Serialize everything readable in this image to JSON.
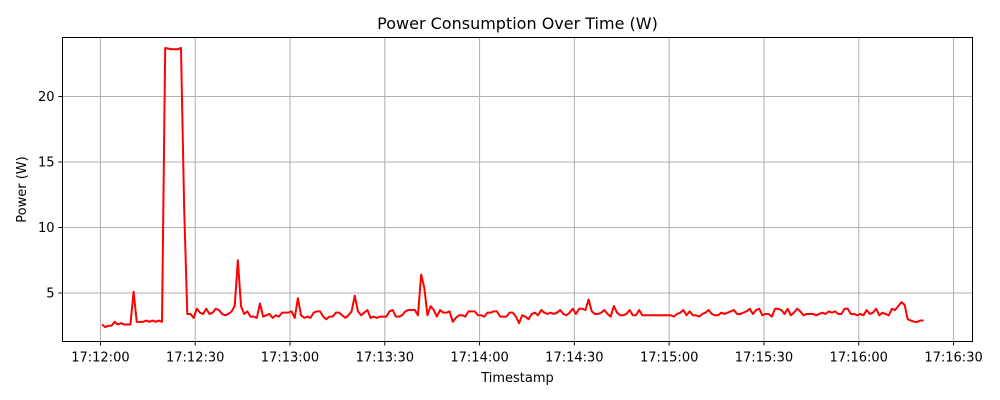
{
  "chart_data": {
    "type": "line",
    "title": "Power Consumption Over Time (W)",
    "xlabel": "Timestamp",
    "ylabel": "Power (W)",
    "grid": true,
    "x_range_seconds_label": [
      "17:11:48",
      "17:16:36"
    ],
    "ylim": [
      1.3,
      24.5
    ],
    "x_ticks": [
      "17:12:00",
      "17:12:30",
      "17:13:00",
      "17:13:30",
      "17:14:00",
      "17:14:30",
      "17:15:00",
      "17:15:30",
      "17:16:00",
      "17:16:30"
    ],
    "y_ticks": [
      5,
      10,
      15,
      20
    ],
    "series": [
      {
        "color": "#ff0000",
        "points": [
          [
            "17:12:00.5",
            2.6
          ],
          [
            "17:12:01.5",
            2.4
          ],
          [
            "17:12:02.5",
            2.5
          ],
          [
            "17:12:03.5",
            2.5
          ],
          [
            "17:12:04.5",
            2.8
          ],
          [
            "17:12:05.5",
            2.6
          ],
          [
            "17:12:06.5",
            2.7
          ],
          [
            "17:12:07.5",
            2.6
          ],
          [
            "17:12:08.5",
            2.6
          ],
          [
            "17:12:09.5",
            2.6
          ],
          [
            "17:12:10.5",
            5.1
          ],
          [
            "17:12:11.5",
            2.8
          ],
          [
            "17:12:12.5",
            2.8
          ],
          [
            "17:12:13.5",
            2.8
          ],
          [
            "17:12:14.5",
            2.9
          ],
          [
            "17:12:15.5",
            2.8
          ],
          [
            "17:12:16.5",
            2.9
          ],
          [
            "17:12:17.5",
            2.8
          ],
          [
            "17:12:18.5",
            2.9
          ],
          [
            "17:12:19.5",
            2.8
          ],
          [
            "17:12:20.5",
            23.7
          ],
          [
            "17:12:22.5",
            23.6
          ],
          [
            "17:12:24.5",
            23.6
          ],
          [
            "17:12:25.5",
            23.7
          ],
          [
            "17:12:26.5",
            11.5
          ],
          [
            "17:12:27.5",
            3.4
          ],
          [
            "17:12:28.5",
            3.4
          ],
          [
            "17:12:29.5",
            3.1
          ],
          [
            "17:12:30.5",
            3.8
          ],
          [
            "17:12:31.5",
            3.5
          ],
          [
            "17:12:32.5",
            3.4
          ],
          [
            "17:12:33.5",
            3.8
          ],
          [
            "17:12:34.5",
            3.4
          ],
          [
            "17:12:35.5",
            3.5
          ],
          [
            "17:12:36.5",
            3.8
          ],
          [
            "17:12:37.5",
            3.7
          ],
          [
            "17:12:38.5",
            3.4
          ],
          [
            "17:12:39.5",
            3.3
          ],
          [
            "17:12:40.5",
            3.4
          ],
          [
            "17:12:41.5",
            3.6
          ],
          [
            "17:12:42.5",
            4.0
          ],
          [
            "17:12:43.5",
            7.5
          ],
          [
            "17:12:44.5",
            4.0
          ],
          [
            "17:12:45.5",
            3.4
          ],
          [
            "17:12:46.5",
            3.6
          ],
          [
            "17:12:47.5",
            3.2
          ],
          [
            "17:12:48.5",
            3.2
          ],
          [
            "17:12:49.5",
            3.1
          ],
          [
            "17:12:50.5",
            4.2
          ],
          [
            "17:12:51.5",
            3.2
          ],
          [
            "17:12:52.5",
            3.3
          ],
          [
            "17:12:53.5",
            3.4
          ],
          [
            "17:12:54.5",
            3.1
          ],
          [
            "17:12:55.5",
            3.3
          ],
          [
            "17:12:56.5",
            3.2
          ],
          [
            "17:12:57.5",
            3.5
          ],
          [
            "17:12:58.5",
            3.5
          ],
          [
            "17:12:59.5",
            3.5
          ],
          [
            "17:13:00.5",
            3.6
          ],
          [
            "17:13:01.5",
            3.1
          ],
          [
            "17:13:02.5",
            4.6
          ],
          [
            "17:13:03.5",
            3.3
          ],
          [
            "17:13:04.5",
            3.1
          ],
          [
            "17:13:05.5",
            3.2
          ],
          [
            "17:13:06.5",
            3.1
          ],
          [
            "17:13:07.5",
            3.5
          ],
          [
            "17:13:08.5",
            3.6
          ],
          [
            "17:13:09.5",
            3.6
          ],
          [
            "17:13:10.5",
            3.2
          ],
          [
            "17:13:11.5",
            3.0
          ],
          [
            "17:13:12.5",
            3.2
          ],
          [
            "17:13:13.5",
            3.2
          ],
          [
            "17:13:14.5",
            3.5
          ],
          [
            "17:13:15.5",
            3.5
          ],
          [
            "17:13:16.5",
            3.3
          ],
          [
            "17:13:17.5",
            3.1
          ],
          [
            "17:13:18.5",
            3.3
          ],
          [
            "17:13:19.5",
            3.6
          ],
          [
            "17:13:20.5",
            4.8
          ],
          [
            "17:13:21.5",
            3.6
          ],
          [
            "17:13:22.5",
            3.3
          ],
          [
            "17:13:23.5",
            3.5
          ],
          [
            "17:13:24.5",
            3.7
          ],
          [
            "17:13:25.5",
            3.1
          ],
          [
            "17:13:26.5",
            3.2
          ],
          [
            "17:13:27.5",
            3.1
          ],
          [
            "17:13:28.5",
            3.2
          ],
          [
            "17:13:29.5",
            3.2
          ],
          [
            "17:13:30.5",
            3.2
          ],
          [
            "17:13:31.5",
            3.6
          ],
          [
            "17:13:32.5",
            3.7
          ],
          [
            "17:13:33.5",
            3.2
          ],
          [
            "17:13:34.5",
            3.2
          ],
          [
            "17:13:35.5",
            3.3
          ],
          [
            "17:13:36.5",
            3.6
          ],
          [
            "17:13:37.5",
            3.7
          ],
          [
            "17:13:38.5",
            3.7
          ],
          [
            "17:13:39.5",
            3.7
          ],
          [
            "17:13:40.5",
            3.3
          ],
          [
            "17:13:41.5",
            6.4
          ],
          [
            "17:13:42.5",
            5.4
          ],
          [
            "17:13:43.5",
            3.3
          ],
          [
            "17:13:44.5",
            4.0
          ],
          [
            "17:13:45.5",
            3.7
          ],
          [
            "17:13:46.5",
            3.2
          ],
          [
            "17:13:47.5",
            3.7
          ],
          [
            "17:13:48.5",
            3.5
          ],
          [
            "17:13:49.5",
            3.5
          ],
          [
            "17:13:50.5",
            3.6
          ],
          [
            "17:13:51.5",
            2.8
          ],
          [
            "17:13:52.5",
            3.1
          ],
          [
            "17:13:53.5",
            3.3
          ],
          [
            "17:13:54.5",
            3.3
          ],
          [
            "17:13:55.5",
            3.2
          ],
          [
            "17:13:56.5",
            3.6
          ],
          [
            "17:13:57.5",
            3.6
          ],
          [
            "17:13:58.5",
            3.6
          ],
          [
            "17:13:59.5",
            3.3
          ],
          [
            "17:14:00.5",
            3.3
          ],
          [
            "17:14:01.5",
            3.2
          ],
          [
            "17:14:02.5",
            3.5
          ],
          [
            "17:14:03.5",
            3.5
          ],
          [
            "17:14:04.5",
            3.6
          ],
          [
            "17:14:05.5",
            3.6
          ],
          [
            "17:14:06.5",
            3.2
          ],
          [
            "17:14:07.5",
            3.2
          ],
          [
            "17:14:08.5",
            3.2
          ],
          [
            "17:14:09.5",
            3.5
          ],
          [
            "17:14:10.5",
            3.5
          ],
          [
            "17:14:11.5",
            3.2
          ],
          [
            "17:14:12.5",
            2.7
          ],
          [
            "17:14:13.5",
            3.3
          ],
          [
            "17:14:14.5",
            3.2
          ],
          [
            "17:14:15.5",
            3.0
          ],
          [
            "17:14:16.5",
            3.4
          ],
          [
            "17:14:17.5",
            3.5
          ],
          [
            "17:14:18.5",
            3.3
          ],
          [
            "17:14:19.5",
            3.7
          ],
          [
            "17:14:20.5",
            3.5
          ],
          [
            "17:14:21.5",
            3.4
          ],
          [
            "17:14:22.5",
            3.5
          ],
          [
            "17:14:23.5",
            3.4
          ],
          [
            "17:14:24.5",
            3.5
          ],
          [
            "17:14:25.5",
            3.7
          ],
          [
            "17:14:26.5",
            3.4
          ],
          [
            "17:14:27.5",
            3.3
          ],
          [
            "17:14:28.5",
            3.5
          ],
          [
            "17:14:29.5",
            3.8
          ],
          [
            "17:14:30.5",
            3.4
          ],
          [
            "17:14:31.5",
            3.8
          ],
          [
            "17:14:32.5",
            3.8
          ],
          [
            "17:14:33.5",
            3.7
          ],
          [
            "17:14:34.5",
            4.5
          ],
          [
            "17:14:35.5",
            3.6
          ],
          [
            "17:14:36.5",
            3.4
          ],
          [
            "17:14:37.5",
            3.4
          ],
          [
            "17:14:38.5",
            3.5
          ],
          [
            "17:14:39.5",
            3.7
          ],
          [
            "17:14:40.5",
            3.4
          ],
          [
            "17:14:41.5",
            3.2
          ],
          [
            "17:14:42.5",
            4.0
          ],
          [
            "17:14:43.5",
            3.5
          ],
          [
            "17:14:44.5",
            3.3
          ],
          [
            "17:14:45.5",
            3.3
          ],
          [
            "17:14:46.5",
            3.4
          ],
          [
            "17:14:47.5",
            3.7
          ],
          [
            "17:14:48.5",
            3.3
          ],
          [
            "17:14:49.5",
            3.3
          ],
          [
            "17:14:50.5",
            3.7
          ],
          [
            "17:14:51.5",
            3.3
          ],
          [
            "17:14:52.5",
            3.3
          ],
          [
            "17:14:53.5",
            3.3
          ],
          [
            "17:14:54.5",
            3.3
          ],
          [
            "17:14:55.5",
            3.3
          ],
          [
            "17:14:56.5",
            3.3
          ],
          [
            "17:14:57.5",
            3.3
          ],
          [
            "17:14:58.5",
            3.3
          ],
          [
            "17:14:59.5",
            3.3
          ],
          [
            "17:15:00.5",
            3.3
          ],
          [
            "17:15:01.5",
            3.2
          ],
          [
            "17:15:02.5",
            3.4
          ],
          [
            "17:15:03.5",
            3.5
          ],
          [
            "17:15:04.5",
            3.7
          ],
          [
            "17:15:05.5",
            3.3
          ],
          [
            "17:15:06.5",
            3.6
          ],
          [
            "17:15:07.5",
            3.3
          ],
          [
            "17:15:08.5",
            3.3
          ],
          [
            "17:15:09.5",
            3.2
          ],
          [
            "17:15:10.5",
            3.4
          ],
          [
            "17:15:11.5",
            3.5
          ],
          [
            "17:15:12.5",
            3.7
          ],
          [
            "17:15:13.5",
            3.4
          ],
          [
            "17:15:14.5",
            3.3
          ],
          [
            "17:15:15.5",
            3.3
          ],
          [
            "17:15:16.5",
            3.5
          ],
          [
            "17:15:17.5",
            3.4
          ],
          [
            "17:15:18.5",
            3.5
          ],
          [
            "17:15:19.5",
            3.6
          ],
          [
            "17:15:20.5",
            3.7
          ],
          [
            "17:15:21.5",
            3.4
          ],
          [
            "17:15:22.5",
            3.4
          ],
          [
            "17:15:23.5",
            3.5
          ],
          [
            "17:15:24.5",
            3.6
          ],
          [
            "17:15:25.5",
            3.8
          ],
          [
            "17:15:26.5",
            3.4
          ],
          [
            "17:15:27.5",
            3.7
          ],
          [
            "17:15:28.5",
            3.8
          ],
          [
            "17:15:29.5",
            3.3
          ],
          [
            "17:15:30.5",
            3.4
          ],
          [
            "17:15:31.5",
            3.4
          ],
          [
            "17:15:32.5",
            3.2
          ],
          [
            "17:15:33.5",
            3.8
          ],
          [
            "17:15:34.5",
            3.8
          ],
          [
            "17:15:35.5",
            3.7
          ],
          [
            "17:15:36.5",
            3.4
          ],
          [
            "17:15:37.5",
            3.8
          ],
          [
            "17:15:38.5",
            3.3
          ],
          [
            "17:15:39.5",
            3.5
          ],
          [
            "17:15:40.5",
            3.8
          ],
          [
            "17:15:41.5",
            3.6
          ],
          [
            "17:15:42.5",
            3.3
          ],
          [
            "17:15:43.5",
            3.4
          ],
          [
            "17:15:44.5",
            3.4
          ],
          [
            "17:15:45.5",
            3.4
          ],
          [
            "17:15:46.5",
            3.3
          ],
          [
            "17:15:47.5",
            3.4
          ],
          [
            "17:15:48.5",
            3.5
          ],
          [
            "17:15:49.5",
            3.4
          ],
          [
            "17:15:50.5",
            3.6
          ],
          [
            "17:15:51.5",
            3.5
          ],
          [
            "17:15:52.5",
            3.6
          ],
          [
            "17:15:53.5",
            3.4
          ],
          [
            "17:15:54.5",
            3.4
          ],
          [
            "17:15:55.5",
            3.8
          ],
          [
            "17:15:56.5",
            3.8
          ],
          [
            "17:15:57.5",
            3.4
          ],
          [
            "17:15:58.5",
            3.4
          ],
          [
            "17:15:59.5",
            3.3
          ],
          [
            "17:16:00.5",
            3.4
          ],
          [
            "17:16:01.5",
            3.3
          ],
          [
            "17:16:02.5",
            3.7
          ],
          [
            "17:16:03.5",
            3.4
          ],
          [
            "17:16:04.5",
            3.5
          ],
          [
            "17:16:05.5",
            3.8
          ],
          [
            "17:16:06.5",
            3.3
          ],
          [
            "17:16:07.5",
            3.5
          ],
          [
            "17:16:08.5",
            3.4
          ],
          [
            "17:16:09.5",
            3.3
          ],
          [
            "17:16:10.5",
            3.8
          ],
          [
            "17:16:11.5",
            3.7
          ],
          [
            "17:16:12.5",
            4.0
          ],
          [
            "17:16:13.5",
            4.3
          ],
          [
            "17:16:14.5",
            4.1
          ],
          [
            "17:16:15.5",
            3.0
          ],
          [
            "17:16:16.5",
            2.9
          ],
          [
            "17:16:17.5",
            2.8
          ],
          [
            "17:16:18.5",
            2.8
          ],
          [
            "17:16:19.5",
            2.9
          ],
          [
            "17:16:20.5",
            2.9
          ]
        ]
      }
    ]
  }
}
